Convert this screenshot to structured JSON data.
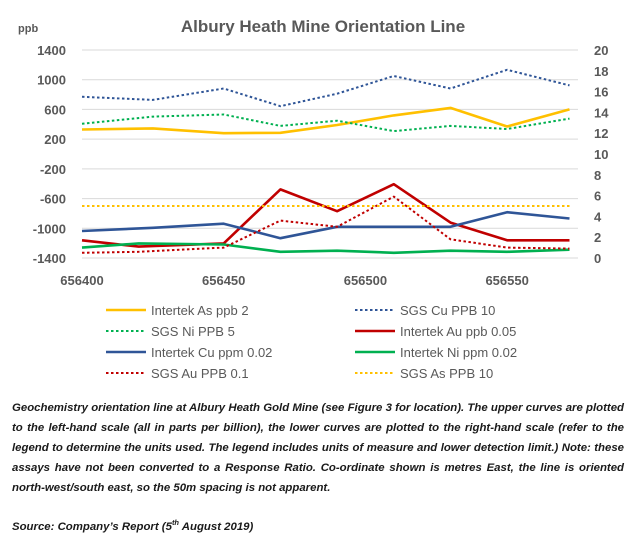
{
  "chart_data": {
    "type": "line",
    "title": "Albury Heath Mine Orientation Line",
    "left_axis": {
      "label": "ppb",
      "ylim": [
        -1400,
        1400
      ],
      "ticks": [
        1400,
        1000,
        600,
        200,
        -200,
        -600,
        -1000,
        -1400
      ]
    },
    "right_axis": {
      "ylim": [
        0,
        20
      ],
      "ticks": [
        20,
        18,
        16,
        14,
        12,
        10,
        8,
        6,
        4,
        2,
        0
      ]
    },
    "x_axis": {
      "xlim": [
        656400,
        656575
      ],
      "ticks": [
        656400,
        656450,
        656500,
        656550
      ]
    },
    "grid": true,
    "legend_position": "bottom",
    "series": [
      {
        "name": "Intertek As ppb 2",
        "axis": "left",
        "color": "#FFC000",
        "dash": "solid",
        "x": [
          656400,
          656425,
          656450,
          656470,
          656490,
          656510,
          656530,
          656550,
          656572
        ],
        "y": [
          330,
          345,
          280,
          285,
          390,
          520,
          620,
          370,
          600
        ]
      },
      {
        "name": "SGS Cu PPB 10",
        "axis": "right",
        "color": "#2F5597",
        "dash": "dotted",
        "x": [
          656400,
          656425,
          656450,
          656470,
          656490,
          656510,
          656530,
          656550,
          656572
        ],
        "y": [
          15.5,
          15.2,
          16.3,
          14.6,
          15.8,
          17.5,
          16.3,
          18.1,
          16.6
        ]
      },
      {
        "name": "SGS Ni PPB 5",
        "axis": "right",
        "color": "#00B050",
        "dash": "dotted",
        "x": [
          656400,
          656425,
          656450,
          656470,
          656490,
          656510,
          656530,
          656550,
          656572
        ],
        "y": [
          12.9,
          13.6,
          13.8,
          12.7,
          13.2,
          12.2,
          12.7,
          12.4,
          13.4
        ]
      },
      {
        "name": "Intertek Au ppb 0.05",
        "axis": "right",
        "color": "#C00000",
        "dash": "solid",
        "x": [
          656400,
          656420,
          656450,
          656470,
          656490,
          656510,
          656530,
          656550,
          656572
        ],
        "y": [
          1.7,
          1.1,
          1.4,
          6.6,
          4.5,
          7.1,
          3.4,
          1.7,
          1.7
        ]
      },
      {
        "name": "Intertek Cu ppm 0.02",
        "axis": "right",
        "color": "#2F5597",
        "dash": "solid",
        "x": [
          656400,
          656425,
          656450,
          656470,
          656490,
          656510,
          656530,
          656550,
          656572
        ],
        "y": [
          2.6,
          2.9,
          3.3,
          1.9,
          3.0,
          3.0,
          3.0,
          4.4,
          3.8
        ]
      },
      {
        "name": "Intertek Ni ppm 0.02",
        "axis": "right",
        "color": "#00B050",
        "dash": "solid",
        "x": [
          656400,
          656420,
          656450,
          656470,
          656490,
          656510,
          656530,
          656550,
          656572
        ],
        "y": [
          1.0,
          1.4,
          1.3,
          0.6,
          0.7,
          0.5,
          0.7,
          0.6,
          0.8
        ]
      },
      {
        "name": "SGS Au PPB 0.1",
        "axis": "right",
        "color": "#C00000",
        "dash": "dotted",
        "x": [
          656400,
          656420,
          656450,
          656470,
          656490,
          656510,
          656530,
          656550,
          656572
        ],
        "y": [
          0.5,
          0.6,
          1.0,
          3.6,
          3.0,
          5.9,
          1.8,
          1.0,
          0.9
        ]
      },
      {
        "name": "SGS As PPB 10",
        "axis": "right",
        "color": "#FFC000",
        "dash": "dotted",
        "x": [
          656400,
          656572
        ],
        "y": [
          5.0,
          5.0
        ]
      }
    ]
  },
  "caption": "Geochemistry orientation line at Albury Heath Gold Mine (see Figure 3 for location). The upper curves are plotted to the left-hand scale (all in parts per billion), the lower curves are plotted to the right-hand scale (refer to the legend to determine the units used. The legend includes units of measure and lower detection limit.) Note: these assays have not been converted to a Response Ratio. Co-ordinate shown is metres East, the line is oriented north-west/south east, so the 50m spacing is not apparent.",
  "source": {
    "prefix": "Source: Company’s Report (5",
    "sup": "th",
    "suffix": " August 2019)"
  }
}
